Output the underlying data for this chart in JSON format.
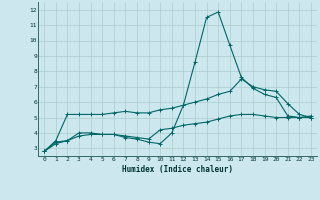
{
  "title": "",
  "xlabel": "Humidex (Indice chaleur)",
  "background_color": "#cce8ee",
  "grid_color": "#aacccc",
  "line_color": "#006666",
  "xlim": [
    -0.5,
    23.5
  ],
  "ylim": [
    2.5,
    12.5
  ],
  "xticks": [
    0,
    1,
    2,
    3,
    4,
    5,
    6,
    7,
    8,
    9,
    10,
    11,
    12,
    13,
    14,
    15,
    16,
    17,
    18,
    19,
    20,
    21,
    22,
    23
  ],
  "yticks": [
    3,
    4,
    5,
    6,
    7,
    8,
    9,
    10,
    11,
    12
  ],
  "line1_x": [
    0,
    1,
    2,
    3,
    4,
    5,
    6,
    7,
    8,
    9,
    10,
    11,
    12,
    13,
    14,
    15,
    16,
    17,
    18,
    19,
    20,
    21,
    22,
    23
  ],
  "line1_y": [
    2.8,
    3.4,
    3.5,
    4.0,
    4.0,
    3.9,
    3.9,
    3.7,
    3.6,
    3.4,
    3.3,
    4.0,
    5.8,
    8.6,
    11.5,
    11.85,
    9.7,
    7.6,
    6.9,
    6.5,
    6.3,
    5.1,
    5.0,
    5.1
  ],
  "line2_x": [
    0,
    1,
    2,
    3,
    4,
    5,
    6,
    7,
    8,
    9,
    10,
    11,
    12,
    13,
    14,
    15,
    16,
    17,
    18,
    19,
    20,
    21,
    22,
    23
  ],
  "line2_y": [
    2.8,
    3.5,
    5.2,
    5.2,
    5.2,
    5.2,
    5.3,
    5.4,
    5.3,
    5.3,
    5.5,
    5.6,
    5.8,
    6.0,
    6.2,
    6.5,
    6.7,
    7.5,
    7.0,
    6.8,
    6.7,
    5.9,
    5.2,
    5.0
  ],
  "line3_x": [
    0,
    1,
    2,
    3,
    4,
    5,
    6,
    7,
    8,
    9,
    10,
    11,
    12,
    13,
    14,
    15,
    16,
    17,
    18,
    19,
    20,
    21,
    22,
    23
  ],
  "line3_y": [
    2.8,
    3.3,
    3.5,
    3.8,
    3.9,
    3.9,
    3.9,
    3.8,
    3.7,
    3.6,
    4.2,
    4.3,
    4.5,
    4.6,
    4.7,
    4.9,
    5.1,
    5.2,
    5.2,
    5.1,
    5.0,
    5.0,
    5.0,
    5.0
  ]
}
